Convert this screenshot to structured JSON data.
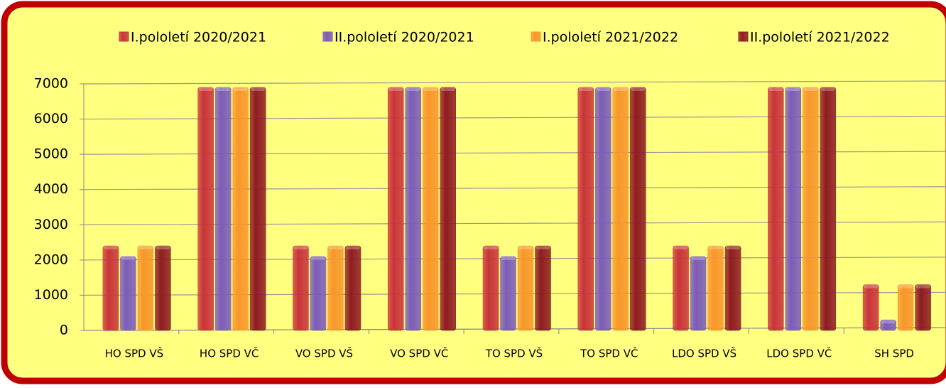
{
  "chart_data": {
    "type": "bar",
    "categories": [
      "HO SPD VŠ",
      "HO SPD VČ",
      "VO SPD VŠ",
      "VO SPD VČ",
      "TO SPD VŠ",
      "TO SPD VČ",
      "LDO SPD VŠ",
      "LDO SPD VČ",
      "SH SPD"
    ],
    "series": [
      {
        "name": "I.pololetí 2020/2021",
        "color": "#c9343a",
        "values": [
          2400,
          6900,
          2400,
          6900,
          2400,
          6900,
          2400,
          6900,
          1300
        ]
      },
      {
        "name": "II.pololetí 2020/2021",
        "color": "#7b5cb9",
        "values": [
          2100,
          6900,
          2100,
          6900,
          2100,
          6900,
          2100,
          6900,
          300
        ]
      },
      {
        "name": "I.pololetí 2021/2022",
        "color": "#f7972b",
        "values": [
          2400,
          6900,
          2400,
          6900,
          2400,
          6900,
          2400,
          6900,
          1300
        ]
      },
      {
        "name": "II.pololetí 2021/2022",
        "color": "#8e1c22",
        "values": [
          2400,
          6900,
          2400,
          6900,
          2400,
          6900,
          2400,
          6900,
          1300
        ]
      }
    ],
    "ylim": [
      0,
      7000
    ],
    "yticks": [
      0,
      1000,
      2000,
      3000,
      4000,
      5000,
      6000,
      7000
    ],
    "grid": true,
    "legend": "top"
  }
}
